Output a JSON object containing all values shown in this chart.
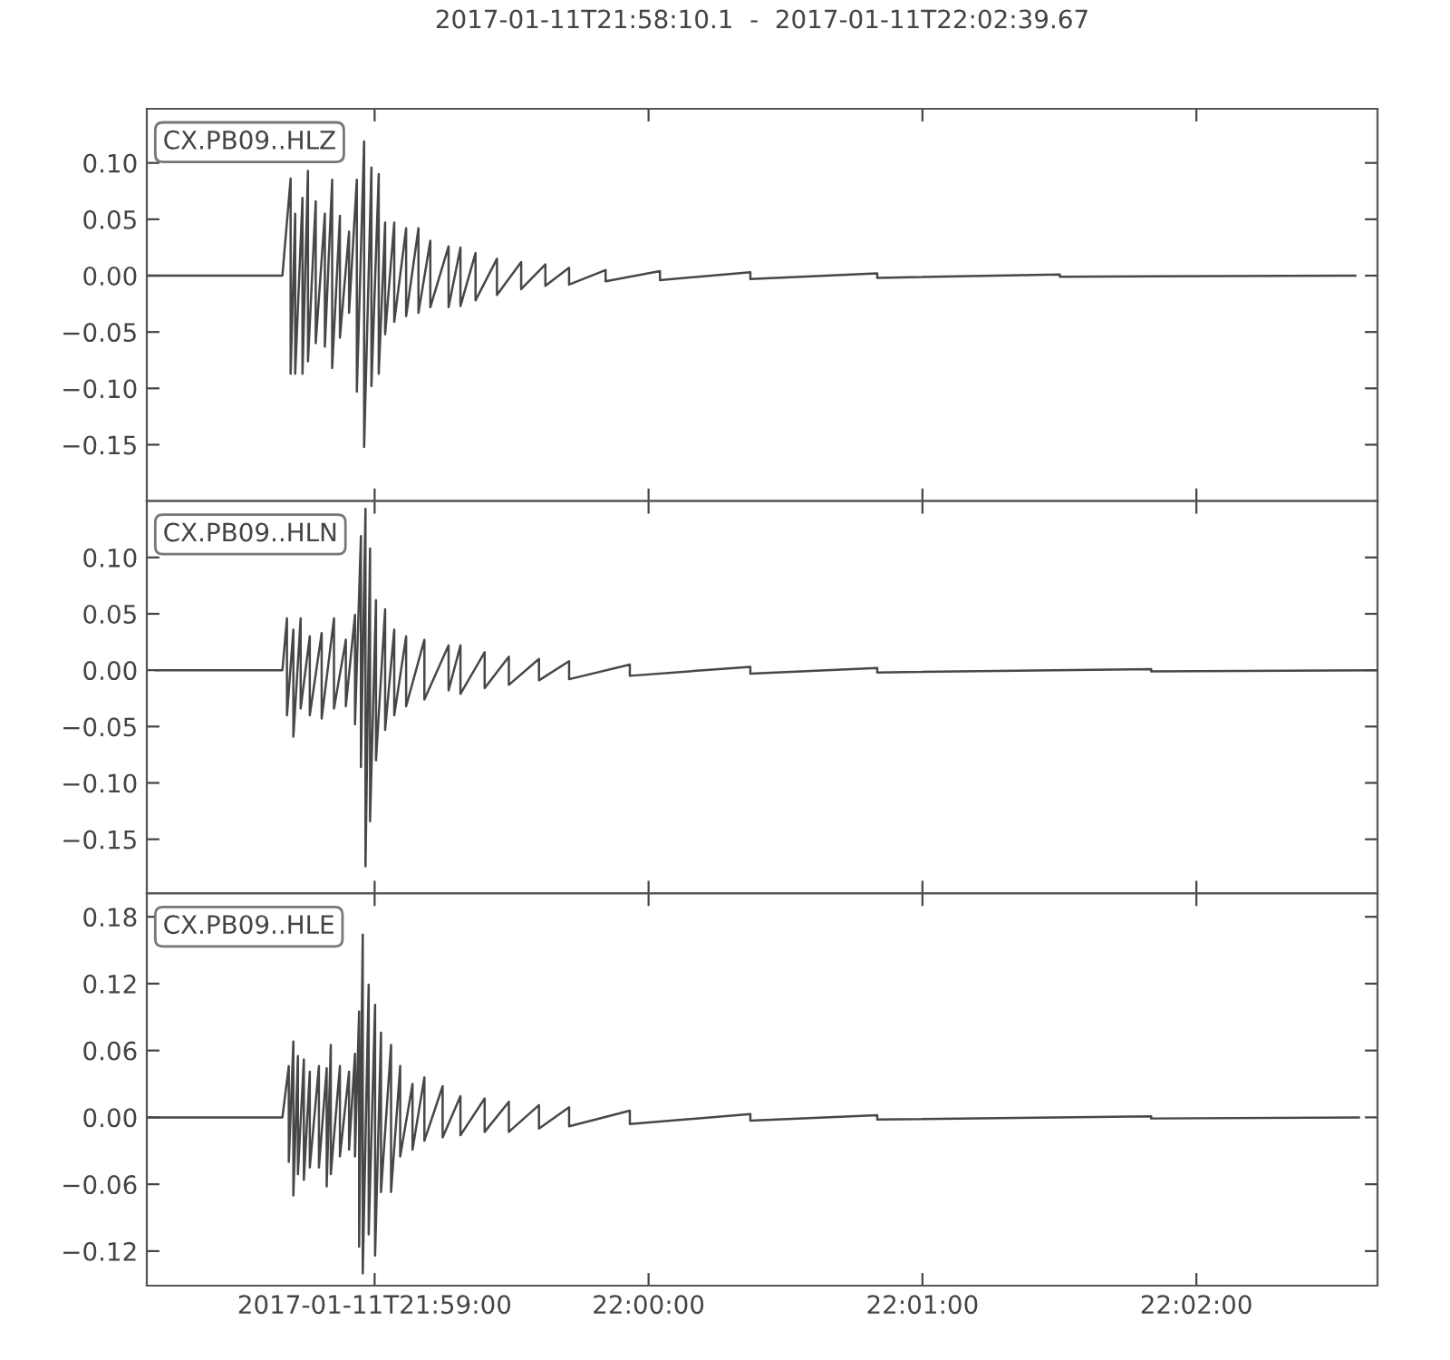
{
  "chart_data": [
    {
      "type": "line",
      "title": "2017-01-11T21:58:10.1  -  2017-01-11T22:02:39.67",
      "annotations": [
        "CX.PB09..HLZ"
      ],
      "grid": false,
      "marker": "none",
      "line_style": "solid",
      "tick_labels": "y",
      "xlim": [
        "2017-01-11T21:58:10.1",
        "2017-01-11T22:02:39.67"
      ],
      "xticks": [
        {
          "value": "2017-01-11T21:59:00",
          "label": null
        },
        {
          "value": "2017-01-11T22:00:00",
          "label": null
        },
        {
          "value": "2017-01-11T22:01:00",
          "label": null
        },
        {
          "value": "2017-01-11T22:02:00",
          "label": null
        }
      ],
      "ylim": [
        -0.2,
        0.148
      ],
      "yticks": [
        {
          "value": 0.1,
          "label": "0.10"
        },
        {
          "value": 0.05,
          "label": "0.05"
        },
        {
          "value": 0,
          "label": "0.00"
        },
        {
          "value": -0.05,
          "label": "−0.05"
        },
        {
          "value": -0.1,
          "label": "−0.10"
        },
        {
          "value": -0.15,
          "label": "−0.15"
        }
      ],
      "series": [
        {
          "color": "#474747",
          "x": [
            "2017-01-11T21:58:10.1",
            "2017-01-11T21:58:39.8",
            "2017-01-11T21:58:41.6",
            "2017-01-11T21:58:41.6",
            "2017-01-11T21:58:42.6",
            "2017-01-11T21:58:42.6",
            "2017-01-11T21:58:44.2",
            "2017-01-11T21:58:44.2",
            "2017-01-11T21:58:45.4",
            "2017-01-11T21:58:45.4",
            "2017-01-11T21:58:47.1",
            "2017-01-11T21:58:47.1",
            "2017-01-11T21:58:49.1",
            "2017-01-11T21:58:49.1",
            "2017-01-11T21:58:50.7",
            "2017-01-11T21:58:50.7",
            "2017-01-11T21:58:52.4",
            "2017-01-11T21:58:52.4",
            "2017-01-11T21:58:54.4",
            "2017-01-11T21:58:54.4",
            "2017-01-11T21:58:56.1",
            "2017-01-11T21:58:56.1",
            "2017-01-11T21:58:57.7",
            "2017-01-11T21:58:57.7",
            "2017-01-11T21:58:59.3",
            "2017-01-11T21:58:59.3",
            "2017-01-11T21:59:00.9",
            "2017-01-11T21:59:00.9",
            "2017-01-11T21:59:02.3",
            "2017-01-11T21:59:02.3",
            "2017-01-11T21:59:04.3",
            "2017-01-11T21:59:04.3",
            "2017-01-11T21:59:06.9",
            "2017-01-11T21:59:06.9",
            "2017-01-11T21:59:09.6",
            "2017-01-11T21:59:09.6",
            "2017-01-11T21:59:12.2",
            "2017-01-11T21:59:12.2",
            "2017-01-11T21:59:16.2",
            "2017-01-11T21:59:16.2",
            "2017-01-11T21:59:18.8",
            "2017-01-11T21:59:18.8",
            "2017-01-11T21:59:22.1",
            "2017-01-11T21:59:22.1",
            "2017-01-11T21:59:26.8",
            "2017-01-11T21:59:26.8",
            "2017-01-11T21:59:32.1",
            "2017-01-11T21:59:32.1",
            "2017-01-11T21:59:37.4",
            "2017-01-11T21:59:37.4",
            "2017-01-11T21:59:42.6",
            "2017-01-11T21:59:42.6",
            "2017-01-11T21:59:50.6",
            "2017-01-11T21:59:50.6",
            "2017-01-11T22:00:02.5",
            "2017-01-11T22:00:02.5",
            "2017-01-11T22:00:22.3",
            "2017-01-11T22:00:22.3",
            "2017-01-11T22:00:50.1",
            "2017-01-11T22:00:50.1",
            "2017-01-11T22:01:30.1",
            "2017-01-11T22:01:30.1",
            "2017-01-11T22:02:34.8"
          ],
          "values": [
            0,
            0,
            0.086,
            -0.087,
            0.055,
            -0.087,
            0.069,
            -0.087,
            0.093,
            -0.076,
            0.066,
            -0.06,
            0.055,
            -0.063,
            0.085,
            -0.082,
            0.053,
            -0.055,
            0.039,
            -0.033,
            0.085,
            -0.103,
            0.119,
            -0.152,
            0.096,
            -0.098,
            0.09,
            -0.087,
            0.047,
            -0.052,
            0.047,
            -0.041,
            0.042,
            -0.036,
            0.042,
            -0.033,
            0.031,
            -0.028,
            0.026,
            -0.028,
            0.025,
            -0.027,
            0.02,
            -0.022,
            0.015,
            -0.017,
            0.012,
            -0.012,
            0.01,
            -0.009,
            0.007,
            -0.008,
            0.005,
            -0.005,
            0.004,
            -0.004,
            0.003,
            -0.003,
            0.002,
            -0.002,
            0.001,
            -0.001,
            0
          ]
        }
      ]
    },
    {
      "type": "line",
      "annotations": [
        "CX.PB09..HLN"
      ],
      "grid": false,
      "marker": "none",
      "line_style": "solid",
      "tick_labels": "y",
      "xlim": [
        "2017-01-11T21:58:10.1",
        "2017-01-11T22:02:39.67"
      ],
      "xticks": [
        {
          "value": "2017-01-11T21:59:00",
          "label": null
        },
        {
          "value": "2017-01-11T22:00:00",
          "label": null
        },
        {
          "value": "2017-01-11T22:01:00",
          "label": null
        },
        {
          "value": "2017-01-11T22:02:00",
          "label": null
        }
      ],
      "ylim": [
        -0.198,
        0.15
      ],
      "yticks": [
        {
          "value": 0.1,
          "label": "0.10"
        },
        {
          "value": 0.05,
          "label": "0.05"
        },
        {
          "value": 0,
          "label": "0.00"
        },
        {
          "value": -0.05,
          "label": "−0.05"
        },
        {
          "value": -0.1,
          "label": "−0.10"
        },
        {
          "value": -0.15,
          "label": "−0.15"
        }
      ],
      "series": [
        {
          "color": "#474747",
          "x": [
            "2017-01-11T21:58:12.2",
            "2017-01-11T21:58:39.8",
            "2017-01-11T21:58:40.8",
            "2017-01-11T21:58:40.8",
            "2017-01-11T21:58:42.2",
            "2017-01-11T21:58:42.2",
            "2017-01-11T21:58:43.8",
            "2017-01-11T21:58:43.8",
            "2017-01-11T21:58:45.8",
            "2017-01-11T21:58:45.8",
            "2017-01-11T21:58:48.4",
            "2017-01-11T21:58:48.4",
            "2017-01-11T21:58:51.1",
            "2017-01-11T21:58:51.1",
            "2017-01-11T21:58:53.7",
            "2017-01-11T21:58:53.7",
            "2017-01-11T21:58:55.7",
            "2017-01-11T21:58:55.7",
            "2017-01-11T21:58:57.0",
            "2017-01-11T21:58:57.0",
            "2017-01-11T21:58:58.0",
            "2017-01-11T21:58:58.0",
            "2017-01-11T21:58:59.0",
            "2017-01-11T21:58:59.0",
            "2017-01-11T21:59:00.3",
            "2017-01-11T21:59:00.3",
            "2017-01-11T21:59:02.3",
            "2017-01-11T21:59:02.3",
            "2017-01-11T21:59:04.3",
            "2017-01-11T21:59:04.3",
            "2017-01-11T21:59:06.9",
            "2017-01-11T21:59:06.9",
            "2017-01-11T21:59:10.9",
            "2017-01-11T21:59:10.9",
            "2017-01-11T21:59:16.2",
            "2017-01-11T21:59:16.2",
            "2017-01-11T21:59:18.8",
            "2017-01-11T21:59:18.8",
            "2017-01-11T21:59:24.1",
            "2017-01-11T21:59:24.1",
            "2017-01-11T21:59:29.4",
            "2017-01-11T21:59:29.4",
            "2017-01-11T21:59:36.0",
            "2017-01-11T21:59:36.0",
            "2017-01-11T21:59:42.6",
            "2017-01-11T21:59:42.6",
            "2017-01-11T21:59:55.9",
            "2017-01-11T21:59:55.9",
            "2017-01-11T22:00:22.3",
            "2017-01-11T22:00:22.3",
            "2017-01-11T22:00:50.1",
            "2017-01-11T22:00:50.1",
            "2017-01-11T22:01:50.1",
            "2017-01-11T22:01:50.1",
            "2017-01-11T22:02:39.6"
          ],
          "values": [
            0,
            0,
            0.046,
            -0.04,
            0.036,
            -0.059,
            0.046,
            -0.034,
            0.03,
            -0.04,
            0.033,
            -0.043,
            0.046,
            -0.034,
            0.027,
            -0.032,
            0.049,
            -0.048,
            0.119,
            -0.086,
            0.143,
            -0.174,
            0.108,
            -0.134,
            0.062,
            -0.08,
            0.054,
            -0.053,
            0.036,
            -0.04,
            0.03,
            -0.032,
            0.027,
            -0.026,
            0.022,
            -0.018,
            0.022,
            -0.021,
            0.016,
            -0.016,
            0.012,
            -0.013,
            0.01,
            -0.009,
            0.008,
            -0.008,
            0.005,
            -0.005,
            0.003,
            -0.003,
            0.002,
            -0.002,
            0.001,
            -0.001,
            0
          ]
        }
      ]
    },
    {
      "type": "line",
      "annotations": [
        "CX.PB09..HLE"
      ],
      "grid": false,
      "marker": "none",
      "line_style": "solid",
      "xlim": [
        "2017-01-11T21:58:10.1",
        "2017-01-11T22:02:39.67"
      ],
      "xticks": [
        {
          "value": "2017-01-11T21:59:00",
          "label": "2017-01-11T21:59:00"
        },
        {
          "value": "2017-01-11T22:00:00",
          "label": "22:00:00"
        },
        {
          "value": "2017-01-11T22:01:00",
          "label": "22:01:00"
        },
        {
          "value": "2017-01-11T22:02:00",
          "label": "22:02:00"
        }
      ],
      "ylim": [
        -0.151,
        0.201
      ],
      "yticks": [
        {
          "value": 0.18,
          "label": "0.18"
        },
        {
          "value": 0.12,
          "label": "0.12"
        },
        {
          "value": 0.06,
          "label": "0.06"
        },
        {
          "value": 0,
          "label": "0.00"
        },
        {
          "value": -0.06,
          "label": "−0.06"
        },
        {
          "value": -0.12,
          "label": "−0.12"
        }
      ],
      "series": [
        {
          "color": "#474747",
          "x": [
            "2017-01-11T21:58:10.1",
            "2017-01-11T21:58:39.8",
            "2017-01-11T21:58:41.2",
            "2017-01-11T21:58:41.2",
            "2017-01-11T21:58:42.2",
            "2017-01-11T21:58:42.2",
            "2017-01-11T21:58:43.2",
            "2017-01-11T21:58:43.2",
            "2017-01-11T21:58:44.5",
            "2017-01-11T21:58:44.5",
            "2017-01-11T21:58:45.8",
            "2017-01-11T21:58:45.8",
            "2017-01-11T21:58:47.8",
            "2017-01-11T21:58:47.8",
            "2017-01-11T21:58:49.5",
            "2017-01-11T21:58:49.5",
            "2017-01-11T21:58:50.4",
            "2017-01-11T21:58:50.4",
            "2017-01-11T21:58:52.4",
            "2017-01-11T21:58:52.4",
            "2017-01-11T21:58:54.4",
            "2017-01-11T21:58:54.4",
            "2017-01-11T21:58:55.7",
            "2017-01-11T21:58:55.7",
            "2017-01-11T21:58:56.6",
            "2017-01-11T21:58:56.6",
            "2017-01-11T21:58:57.4",
            "2017-01-11T21:58:57.4",
            "2017-01-11T21:58:58.7",
            "2017-01-11T21:58:58.7",
            "2017-01-11T21:59:00.1",
            "2017-01-11T21:59:00.1",
            "2017-01-11T21:59:01.4",
            "2017-01-11T21:59:01.4",
            "2017-01-11T21:59:03.6",
            "2017-01-11T21:59:03.6",
            "2017-01-11T21:59:05.6",
            "2017-01-11T21:59:05.6",
            "2017-01-11T21:59:08.3",
            "2017-01-11T21:59:08.3",
            "2017-01-11T21:59:10.9",
            "2017-01-11T21:59:10.9",
            "2017-01-11T21:59:14.9",
            "2017-01-11T21:59:14.9",
            "2017-01-11T21:59:18.8",
            "2017-01-11T21:59:18.8",
            "2017-01-11T21:59:24.1",
            "2017-01-11T21:59:24.1",
            "2017-01-11T21:59:29.4",
            "2017-01-11T21:59:29.4",
            "2017-01-11T21:59:36.0",
            "2017-01-11T21:59:36.0",
            "2017-01-11T21:59:42.6",
            "2017-01-11T21:59:42.6",
            "2017-01-11T21:59:55.9",
            "2017-01-11T21:59:55.9",
            "2017-01-11T22:00:22.3",
            "2017-01-11T22:00:22.3",
            "2017-01-11T22:00:50.1",
            "2017-01-11T22:00:50.1",
            "2017-01-11T22:01:50.1",
            "2017-01-11T22:01:50.1",
            "2017-01-11T22:02:35.6"
          ],
          "values": [
            0,
            0,
            0.046,
            -0.04,
            0.068,
            -0.07,
            0.055,
            -0.051,
            0.052,
            -0.056,
            0.041,
            -0.045,
            0.046,
            -0.045,
            0.044,
            -0.062,
            0.065,
            -0.051,
            0.046,
            -0.035,
            0.041,
            -0.029,
            0.057,
            -0.035,
            0.095,
            -0.116,
            0.164,
            -0.14,
            0.119,
            -0.105,
            0.101,
            -0.124,
            0.076,
            -0.067,
            0.065,
            -0.067,
            0.046,
            -0.035,
            0.03,
            -0.029,
            0.036,
            -0.021,
            0.028,
            -0.018,
            0.019,
            -0.016,
            0.017,
            -0.013,
            0.014,
            -0.013,
            0.011,
            -0.01,
            0.009,
            -0.008,
            0.006,
            -0.006,
            0.003,
            -0.003,
            0.002,
            -0.002,
            0.001,
            -0.001,
            0
          ]
        }
      ]
    }
  ]
}
